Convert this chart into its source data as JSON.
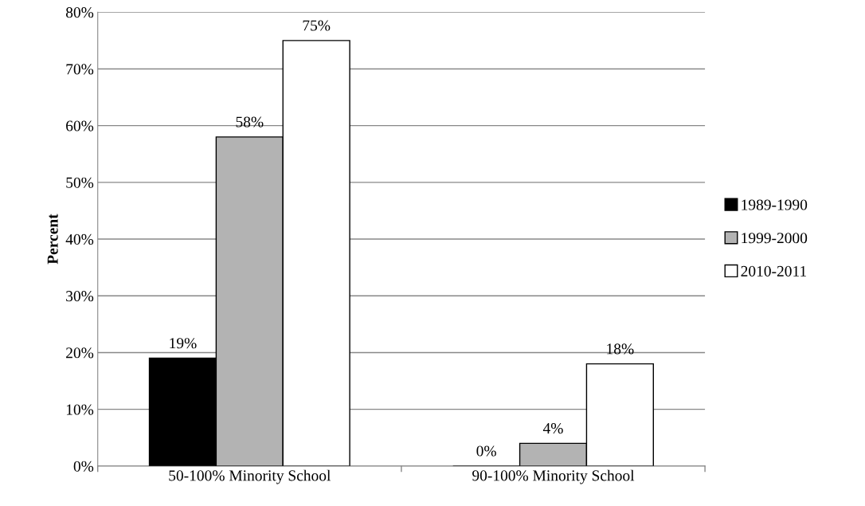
{
  "chart_data": {
    "type": "bar",
    "ylabel": "Percent",
    "categories": [
      "50-100% Minority School",
      "90-100% Minority School"
    ],
    "series": [
      {
        "name": "1989-1990",
        "color": "#000000",
        "values": [
          19,
          0
        ],
        "value_labels": [
          "19%",
          "0%"
        ]
      },
      {
        "name": "1999-2000",
        "color": "#b3b3b3",
        "values": [
          58,
          4
        ],
        "value_labels": [
          "58%",
          "4%"
        ]
      },
      {
        "name": "2010-2011",
        "color": "#ffffff",
        "values": [
          75,
          18
        ],
        "value_labels": [
          "75%",
          "18%"
        ]
      }
    ],
    "ylim": [
      0,
      80
    ],
    "yticks": [
      {
        "value": 0,
        "label": "0%"
      },
      {
        "value": 10,
        "label": "10%"
      },
      {
        "value": 20,
        "label": "20%"
      },
      {
        "value": 30,
        "label": "30%"
      },
      {
        "value": 40,
        "label": "40%"
      },
      {
        "value": 50,
        "label": "50%"
      },
      {
        "value": 60,
        "label": "60%"
      },
      {
        "value": 70,
        "label": "70%"
      },
      {
        "value": 80,
        "label": "80%"
      }
    ],
    "grid": "y",
    "legend": "right"
  }
}
